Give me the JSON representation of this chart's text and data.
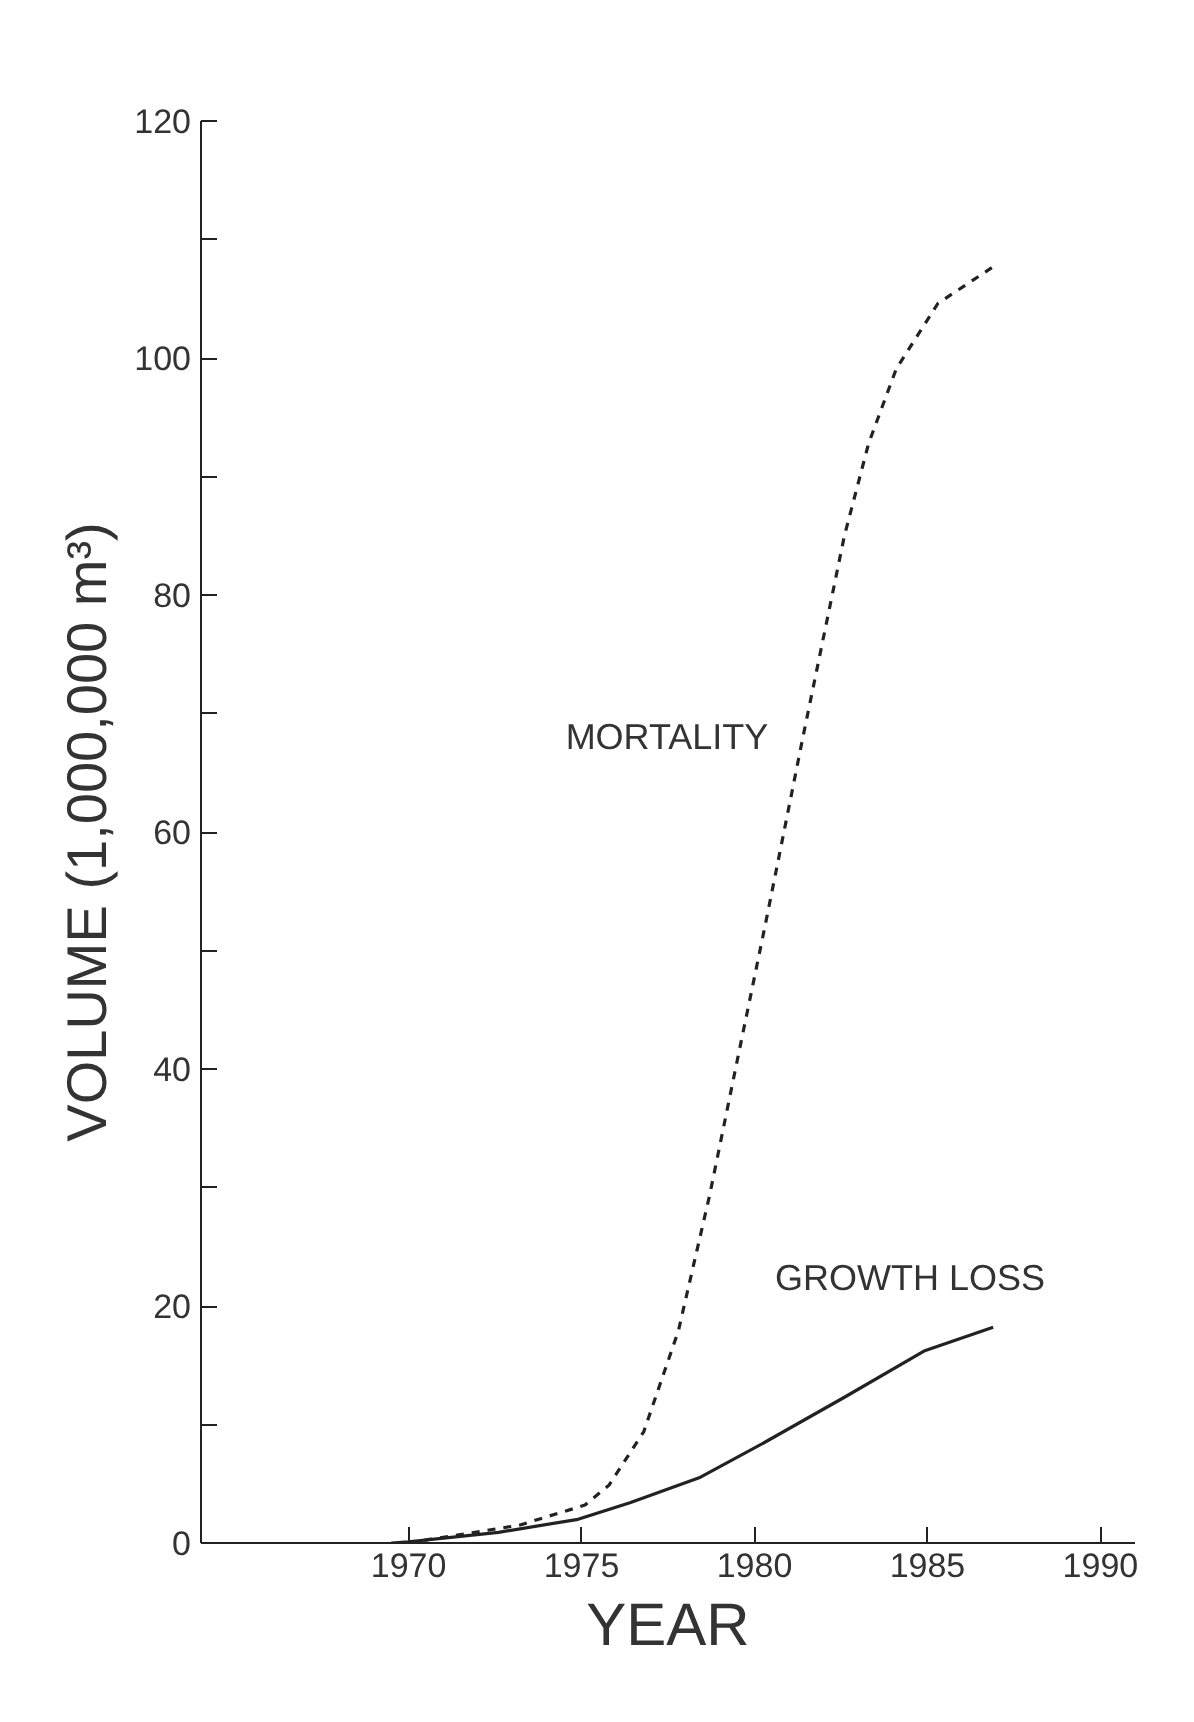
{
  "chart_data": {
    "type": "line",
    "xlabel": "YEAR",
    "ylabel": "VOLUME (1,000,000 m³)",
    "xlim": [
      1964,
      1991
    ],
    "xticks": [
      1970,
      1975,
      1980,
      1985,
      1990
    ],
    "ylim": [
      0,
      120
    ],
    "yticks": [
      0,
      {
        "value": 10,
        "label": null
      },
      20,
      {
        "value": 30,
        "label": null
      },
      40,
      {
        "value": 50,
        "label": null
      },
      60,
      {
        "value": 70,
        "label": null
      },
      80,
      {
        "value": 90,
        "label": null
      },
      100,
      {
        "value": 110,
        "label": null
      },
      120
    ],
    "grid": false,
    "series": [
      {
        "name": "MORTALITY",
        "color": "#222222",
        "line_style": "dashed",
        "x": [
          1970,
          1970.6,
          1973.2,
          1975.1,
          1975.8,
          1976.8,
          1977.8,
          1978.7,
          1979.5,
          1980.3,
          1980.7,
          1981.4,
          1982.0,
          1982.6,
          1983.3,
          1984.1,
          1985.3,
          1986.9
        ],
        "values": [
          0,
          0.3,
          1.5,
          3.2,
          4.9,
          9.4,
          17.9,
          29.3,
          40.7,
          52,
          57.8,
          68,
          76.5,
          85,
          92.8,
          99.1,
          104.6,
          107.7
        ]
      },
      {
        "name": "GROWTH LOSS",
        "color": "#222222",
        "line_style": "solid",
        "x": [
          1969.5,
          1970,
          1972.6,
          1974.9,
          1976.4,
          1978.4,
          1980.3,
          1982.6,
          1984.9,
          1986.9
        ],
        "values": [
          0,
          0.1,
          0.9,
          2.0,
          3.4,
          5.5,
          8.5,
          12.3,
          16.2,
          18.2
        ]
      }
    ]
  }
}
